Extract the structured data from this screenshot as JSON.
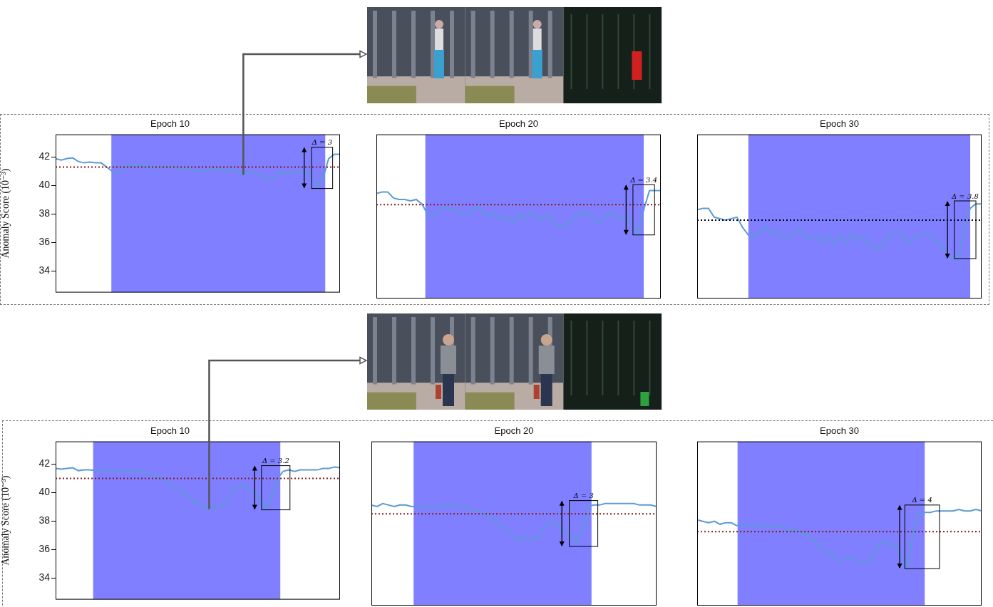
{
  "chart_data": [
    {
      "type": "line",
      "title": "Epoch 10",
      "y_label": "Anomaly Score (10⁻³)",
      "x": [
        0,
        1,
        2,
        3,
        4,
        5,
        6,
        7,
        8,
        9,
        10,
        11,
        12,
        13,
        14,
        15,
        16,
        17,
        18,
        19,
        20,
        21,
        22,
        23,
        24,
        25,
        26,
        27,
        28,
        29,
        30,
        31,
        32,
        33,
        34,
        35,
        36,
        37,
        38,
        39,
        40,
        41,
        42,
        43,
        44,
        45,
        46,
        47,
        48,
        49,
        50
      ],
      "values": [
        41.9,
        41.8,
        41.9,
        41.95,
        41.7,
        41.6,
        41.65,
        41.6,
        41.6,
        41.3,
        41.0,
        40.9,
        41.3,
        41.5,
        41.4,
        41.5,
        41.5,
        41.2,
        41.3,
        41.3,
        41.4,
        41.3,
        41.2,
        41.2,
        41.1,
        41.0,
        41.1,
        41.0,
        41.2,
        41.1,
        41.0,
        41.2,
        40.9,
        40.75,
        41.0,
        40.9,
        40.8,
        40.4,
        40.4,
        40.8,
        40.9,
        40.9,
        40.9,
        41.0,
        41.0,
        40.6,
        39.9,
        40.5,
        41.9,
        42.2,
        42.2
      ],
      "color": "#5b9bd5",
      "xlim": [
        0,
        50
      ],
      "ylim": [
        32.5,
        43.6
      ],
      "yticks": [
        34,
        36,
        38,
        40,
        42
      ],
      "tick_labels": "y",
      "grid": false,
      "threshold": {
        "value": 41.3,
        "color": "#8b1a1a"
      },
      "anomaly_interval": {
        "x": [
          9.8,
          47.4
        ],
        "color": "#7f7fff"
      },
      "delta": {
        "label": "Δ = 3",
        "box_x": [
          45.0,
          48.7
        ],
        "box_y": [
          39.8,
          42.7
        ],
        "arrow_x": 43.7
      },
      "linked_frame_x": 33
    },
    {
      "type": "line",
      "title": "Epoch 20",
      "x": [
        0,
        1,
        2,
        3,
        4,
        5,
        6,
        7,
        8,
        9,
        10,
        11,
        12,
        13,
        14,
        15,
        16,
        17,
        18,
        19,
        20,
        21,
        22,
        23,
        24,
        25,
        26,
        27,
        28,
        29,
        30,
        31,
        32,
        33,
        34,
        35,
        36,
        37,
        38,
        39,
        40,
        41,
        42,
        43,
        44,
        45,
        46,
        47,
        48,
        49,
        50
      ],
      "values": [
        39.6,
        39.7,
        39.7,
        39.3,
        39.2,
        39.2,
        39.1,
        39.2,
        38.9,
        38.2,
        38.1,
        38.4,
        38.7,
        38.5,
        38.5,
        38.2,
        38.2,
        38.5,
        38.7,
        38.2,
        38.1,
        38.2,
        37.8,
        38.1,
        37.6,
        38.2,
        37.9,
        38.3,
        38.0,
        37.8,
        38.2,
        37.7,
        37.4,
        37.3,
        37.7,
        38.0,
        38.3,
        38.3,
        38.0,
        37.6,
        38.0,
        38.3,
        38.1,
        37.9,
        38.0,
        37.5,
        36.9,
        38.5,
        39.8,
        39.8,
        39.8
      ],
      "color": "#5b9bd5",
      "xlim": [
        0,
        50
      ],
      "ylim": [
        32.5,
        43.6
      ],
      "tick_labels": false,
      "grid": false,
      "threshold": {
        "value": 38.85,
        "color": "#8b1a1a"
      },
      "anomaly_interval": {
        "x": [
          8.6,
          47.0
        ],
        "color": "#7f7fff"
      },
      "delta": {
        "label": "Δ = 3.4",
        "box_x": [
          45.1,
          48.9
        ],
        "box_y": [
          36.8,
          40.2
        ],
        "arrow_x": 43.9
      }
    },
    {
      "type": "line",
      "title": "Epoch 30",
      "x": [
        0,
        1,
        2,
        3,
        4,
        5,
        6,
        7,
        8,
        9,
        10,
        11,
        12,
        13,
        14,
        15,
        16,
        17,
        18,
        19,
        20,
        21,
        22,
        23,
        24,
        25,
        26,
        27,
        28,
        29,
        30,
        31,
        32,
        33,
        34,
        35,
        36,
        37,
        38,
        39,
        40,
        41,
        42,
        43,
        44,
        45,
        46,
        47,
        48,
        49,
        50
      ],
      "values": [
        38.5,
        38.6,
        38.6,
        38.0,
        37.9,
        37.8,
        37.9,
        38.0,
        37.3,
        36.8,
        36.7,
        36.9,
        37.4,
        37.0,
        36.9,
        36.7,
        36.6,
        37.0,
        37.3,
        36.7,
        36.6,
        36.8,
        36.3,
        36.8,
        36.2,
        36.8,
        36.3,
        36.9,
        36.4,
        36.7,
        36.3,
        36.0,
        35.9,
        36.3,
        36.8,
        36.9,
        36.8,
        36.3,
        36.5,
        36.8,
        36.9,
        36.8,
        36.4,
        36.0,
        35.4,
        35.2,
        35.2,
        37.5,
        38.6,
        38.9,
        38.9
      ],
      "color": "#5b9bd5",
      "xlim": [
        0,
        50
      ],
      "ylim": [
        32.5,
        43.6
      ],
      "tick_labels": false,
      "grid": false,
      "threshold": {
        "value": 37.8,
        "color": "#000000"
      },
      "anomaly_interval": {
        "x": [
          9.0,
          48.0
        ],
        "color": "#7f7fff"
      },
      "delta": {
        "label": "Δ = 3.8",
        "box_x": [
          45.2,
          49.0
        ],
        "box_y": [
          35.2,
          39.1
        ],
        "arrow_x": 44.0
      }
    },
    {
      "type": "line",
      "title": "Epoch 10",
      "y_label": "Anomaly Score (10⁻³)",
      "x": [
        0,
        1,
        2,
        3,
        4,
        5,
        6,
        7,
        8,
        9,
        10,
        11,
        12,
        13,
        14,
        15,
        16,
        17,
        18,
        19,
        20,
        21,
        22,
        23,
        24,
        25,
        26,
        27,
        28,
        29,
        30,
        31,
        32,
        33,
        34,
        35,
        36,
        37,
        38,
        39,
        40,
        41,
        42,
        43,
        44,
        45,
        46,
        47,
        48,
        49,
        50
      ],
      "values": [
        41.7,
        41.65,
        41.7,
        41.75,
        41.55,
        41.6,
        41.6,
        41.55,
        41.6,
        41.55,
        41.55,
        41.55,
        41.55,
        41.55,
        41.5,
        41.5,
        41.4,
        41.3,
        41.1,
        40.9,
        40.6,
        40.4,
        40.2,
        39.8,
        39.5,
        39.2,
        39.0,
        38.85,
        39.1,
        39.0,
        39.4,
        40.0,
        40.4,
        40.6,
        40.2,
        40.0,
        39.4,
        38.8,
        39.8,
        41.0,
        41.5,
        41.6,
        41.5,
        41.6,
        41.6,
        41.6,
        41.6,
        41.7,
        41.7,
        41.8,
        41.75
      ],
      "color": "#5b9bd5",
      "xlim": [
        0,
        50
      ],
      "ylim": [
        32.5,
        43.6
      ],
      "yticks": [
        34,
        36,
        38,
        40,
        42
      ],
      "tick_labels": "y",
      "grid": false,
      "threshold": {
        "value": 41.0,
        "color": "#8b1a1a"
      },
      "anomaly_interval": {
        "x": [
          6.6,
          39.5
        ],
        "color": "#7f7fff"
      },
      "delta": {
        "label": "Δ = 3.2",
        "box_x": [
          36.2,
          41.2
        ],
        "box_y": [
          38.8,
          41.9
        ],
        "arrow_x": 35.0
      },
      "linked_frame_x": 27
    },
    {
      "type": "line",
      "title": "Epoch 20",
      "x": [
        0,
        1,
        2,
        3,
        4,
        5,
        6,
        7,
        8,
        9,
        10,
        11,
        12,
        13,
        14,
        15,
        16,
        17,
        18,
        19,
        20,
        21,
        22,
        23,
        24,
        25,
        26,
        27,
        28,
        29,
        30,
        31,
        32,
        33,
        34,
        35,
        36,
        37,
        38,
        39,
        40,
        41,
        42,
        43,
        44,
        45,
        46,
        47,
        48,
        49,
        50
      ],
      "values": [
        39.3,
        39.2,
        39.4,
        39.3,
        39.2,
        39.3,
        39.3,
        39.2,
        39.2,
        39.2,
        39.2,
        39.2,
        39.2,
        39.3,
        39.3,
        39.2,
        39.2,
        39.1,
        39.0,
        38.9,
        38.7,
        38.4,
        38.1,
        37.8,
        37.5,
        37.2,
        36.9,
        37.1,
        37.0,
        37.0,
        37.6,
        38.0,
        38.2,
        37.8,
        37.5,
        37.2,
        36.8,
        37.6,
        39.2,
        39.3,
        39.3,
        39.4,
        39.4,
        39.4,
        39.4,
        39.4,
        39.4,
        39.3,
        39.3,
        39.3,
        39.2
      ],
      "color": "#5b9bd5",
      "xlim": [
        0,
        50
      ],
      "ylim": [
        32.5,
        43.6
      ],
      "tick_labels": false,
      "grid": false,
      "threshold": {
        "value": 38.7,
        "color": "#8b1a1a"
      },
      "anomaly_interval": {
        "x": [
          7.4,
          38.6
        ],
        "color": "#7f7fff"
      },
      "delta": {
        "label": "Δ = 3",
        "box_x": [
          34.7,
          39.7
        ],
        "box_y": [
          36.5,
          39.6
        ],
        "arrow_x": 33.4
      }
    },
    {
      "type": "line",
      "title": "Epoch 30",
      "x": [
        0,
        1,
        2,
        3,
        4,
        5,
        6,
        7,
        8,
        9,
        10,
        11,
        12,
        13,
        14,
        15,
        16,
        17,
        18,
        19,
        20,
        21,
        22,
        23,
        24,
        25,
        26,
        27,
        28,
        29,
        30,
        31,
        32,
        33,
        34,
        35,
        36,
        37,
        38,
        39,
        40,
        41,
        42,
        43,
        44,
        45,
        46,
        47,
        48,
        49,
        50
      ],
      "values": [
        38.3,
        38.2,
        38.1,
        38.2,
        38.0,
        38.1,
        38.1,
        37.9,
        38.0,
        37.9,
        37.9,
        37.9,
        37.9,
        37.9,
        37.8,
        37.8,
        37.7,
        37.6,
        37.5,
        37.3,
        37.1,
        36.7,
        36.2,
        36.1,
        35.9,
        35.5,
        35.6,
        35.8,
        35.6,
        35.4,
        35.3,
        36.1,
        36.6,
        36.9,
        36.6,
        36.5,
        35.7,
        35.1,
        37.6,
        38.8,
        38.8,
        38.8,
        38.9,
        38.9,
        38.9,
        38.9,
        39.0,
        38.9,
        38.9,
        39.0,
        38.9
      ],
      "color": "#5b9bd5",
      "xlim": [
        0,
        50
      ],
      "ylim": [
        32.5,
        43.6
      ],
      "tick_labels": false,
      "grid": false,
      "threshold": {
        "value": 37.5,
        "color": "#8b1a1a"
      },
      "anomaly_interval": {
        "x": [
          7.1,
          40.0
        ],
        "color": "#7f7fff"
      },
      "delta": {
        "label": "Δ = 4",
        "box_x": [
          36.5,
          42.6
        ],
        "box_y": [
          35.0,
          39.3
        ],
        "arrow_x": 35.6
      }
    }
  ]
}
